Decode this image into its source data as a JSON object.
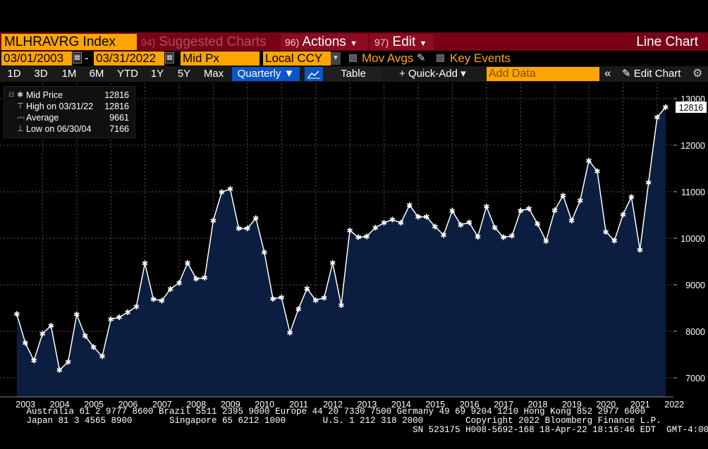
{
  "toolbar1": {
    "ticker": "MLHRAVRG Index",
    "suggested_num": "94)",
    "suggested": "Suggested Charts",
    "actions_num": "96)",
    "actions": "Actions",
    "edit_num": "97)",
    "edit": "Edit",
    "title": "Line Chart"
  },
  "toolbar2": {
    "start_date": "03/01/2003",
    "dash": "-",
    "end_date": "03/31/2022",
    "field": "Mid Px",
    "currency": "Local CCY",
    "mov_avgs": "Mov Avgs",
    "key_events": "Key Events"
  },
  "toolbar3": {
    "periods": [
      "1D",
      "3D",
      "1M",
      "6M",
      "YTD",
      "1Y",
      "5Y",
      "Max"
    ],
    "frequency": "Quarterly ▼",
    "table": "Table",
    "quick_add": "+ Quick-Add ▾",
    "add_data_placeholder": "Add Data",
    "collapse": "«",
    "edit_chart": "✎ Edit Chart",
    "settings": "⚙"
  },
  "legend": {
    "mid_price_label": "Mid Price",
    "mid_price_value": "12816",
    "high_label": "High on 03/31/22",
    "high_value": "12816",
    "avg_label": "Average",
    "avg_value": "9661",
    "low_label": "Low on 06/30/04",
    "low_value": "7166"
  },
  "last_price_tag": "12816",
  "footer": {
    "line1": "     Australia 61 2 9777 8600 Brazil 5511 2395 9000 Europe 44 20 7330 7500 Germany 49 69 9204 1210 Hong Kong 852 2977 6000",
    "line2": "     Japan 81 3 4565 8900       Singapore 65 6212 1000       U.S. 1 212 318 2000        Copyright 2022 Bloomberg Finance L.P.",
    "line3": "                                                                              SN 523175 H008-5692-168 18-Apr-22 18:16:46 EDT  GMT-4:00"
  },
  "colors": {
    "area_fill": "#0b1e3f",
    "line": "#ffffff",
    "accent_orange": "#ffa500",
    "header_red": "#7a0018"
  },
  "chart_data": {
    "type": "area",
    "frequency": "quarterly",
    "x_tick_labels": [
      "2003",
      "2004",
      "2005",
      "2006",
      "2007",
      "2008",
      "2009",
      "2010",
      "2011",
      "2012",
      "2013",
      "2014",
      "2015",
      "2016",
      "2017",
      "2018",
      "2019",
      "2020",
      "2021",
      "2022"
    ],
    "y_tick_labels": [
      "7000",
      "8000",
      "9000",
      "10000",
      "11000",
      "12000",
      "13000"
    ],
    "ylim": [
      6600,
      13200
    ],
    "y_axis_side": "right",
    "grid": true,
    "series": [
      {
        "name": "Mid Price",
        "x": [
          "2003-03-31",
          "2003-06-30",
          "2003-09-30",
          "2003-12-31",
          "2004-03-31",
          "2004-06-30",
          "2004-09-30",
          "2004-12-31",
          "2005-03-31",
          "2005-06-30",
          "2005-09-30",
          "2005-12-31",
          "2006-03-31",
          "2006-06-30",
          "2006-09-30",
          "2006-12-31",
          "2007-03-31",
          "2007-06-30",
          "2007-09-30",
          "2007-12-31",
          "2008-03-31",
          "2008-06-30",
          "2008-09-30",
          "2008-12-31",
          "2009-03-31",
          "2009-06-30",
          "2009-09-30",
          "2009-12-31",
          "2010-03-31",
          "2010-06-30",
          "2010-09-30",
          "2010-12-31",
          "2011-03-31",
          "2011-06-30",
          "2011-09-30",
          "2011-12-31",
          "2012-03-31",
          "2012-06-30",
          "2012-09-30",
          "2012-12-31",
          "2013-03-31",
          "2013-06-30",
          "2013-09-30",
          "2013-12-31",
          "2014-03-31",
          "2014-06-30",
          "2014-09-30",
          "2014-12-31",
          "2015-03-31",
          "2015-06-30",
          "2015-09-30",
          "2015-12-31",
          "2016-03-31",
          "2016-06-30",
          "2016-09-30",
          "2016-12-31",
          "2017-03-31",
          "2017-06-30",
          "2017-09-30",
          "2017-12-31",
          "2018-03-31",
          "2018-06-30",
          "2018-09-30",
          "2018-12-31",
          "2019-03-31",
          "2019-06-30",
          "2019-09-30",
          "2019-12-31",
          "2020-03-31",
          "2020-06-30",
          "2020-09-30",
          "2020-12-31",
          "2021-03-31",
          "2021-06-30",
          "2021-09-30",
          "2021-12-31",
          "2022-03-31"
        ],
        "values": [
          8370,
          7750,
          7370,
          7950,
          8120,
          7166,
          7340,
          8360,
          7900,
          7660,
          7460,
          8260,
          8300,
          8410,
          8530,
          9460,
          8690,
          8660,
          8910,
          9040,
          9470,
          9130,
          9150,
          10380,
          10990,
          11060,
          10210,
          10210,
          10430,
          9700,
          8700,
          8730,
          7970,
          8480,
          8920,
          8670,
          8720,
          9470,
          8560,
          10170,
          10020,
          10040,
          10230,
          10330,
          10400,
          10330,
          10710,
          10460,
          10460,
          10250,
          10070,
          10590,
          10290,
          10340,
          10030,
          10680,
          10230,
          10020,
          10050,
          10590,
          10640,
          10310,
          9940,
          10600,
          10920,
          10380,
          10810,
          11670,
          11440,
          10140,
          9950,
          10510,
          10890,
          9750,
          11200,
          12600,
          12816
        ]
      }
    ],
    "last_value": 12816,
    "high": {
      "date": "03/31/22",
      "value": 12816
    },
    "average": 9661,
    "low": {
      "date": "06/30/04",
      "value": 7166
    }
  }
}
